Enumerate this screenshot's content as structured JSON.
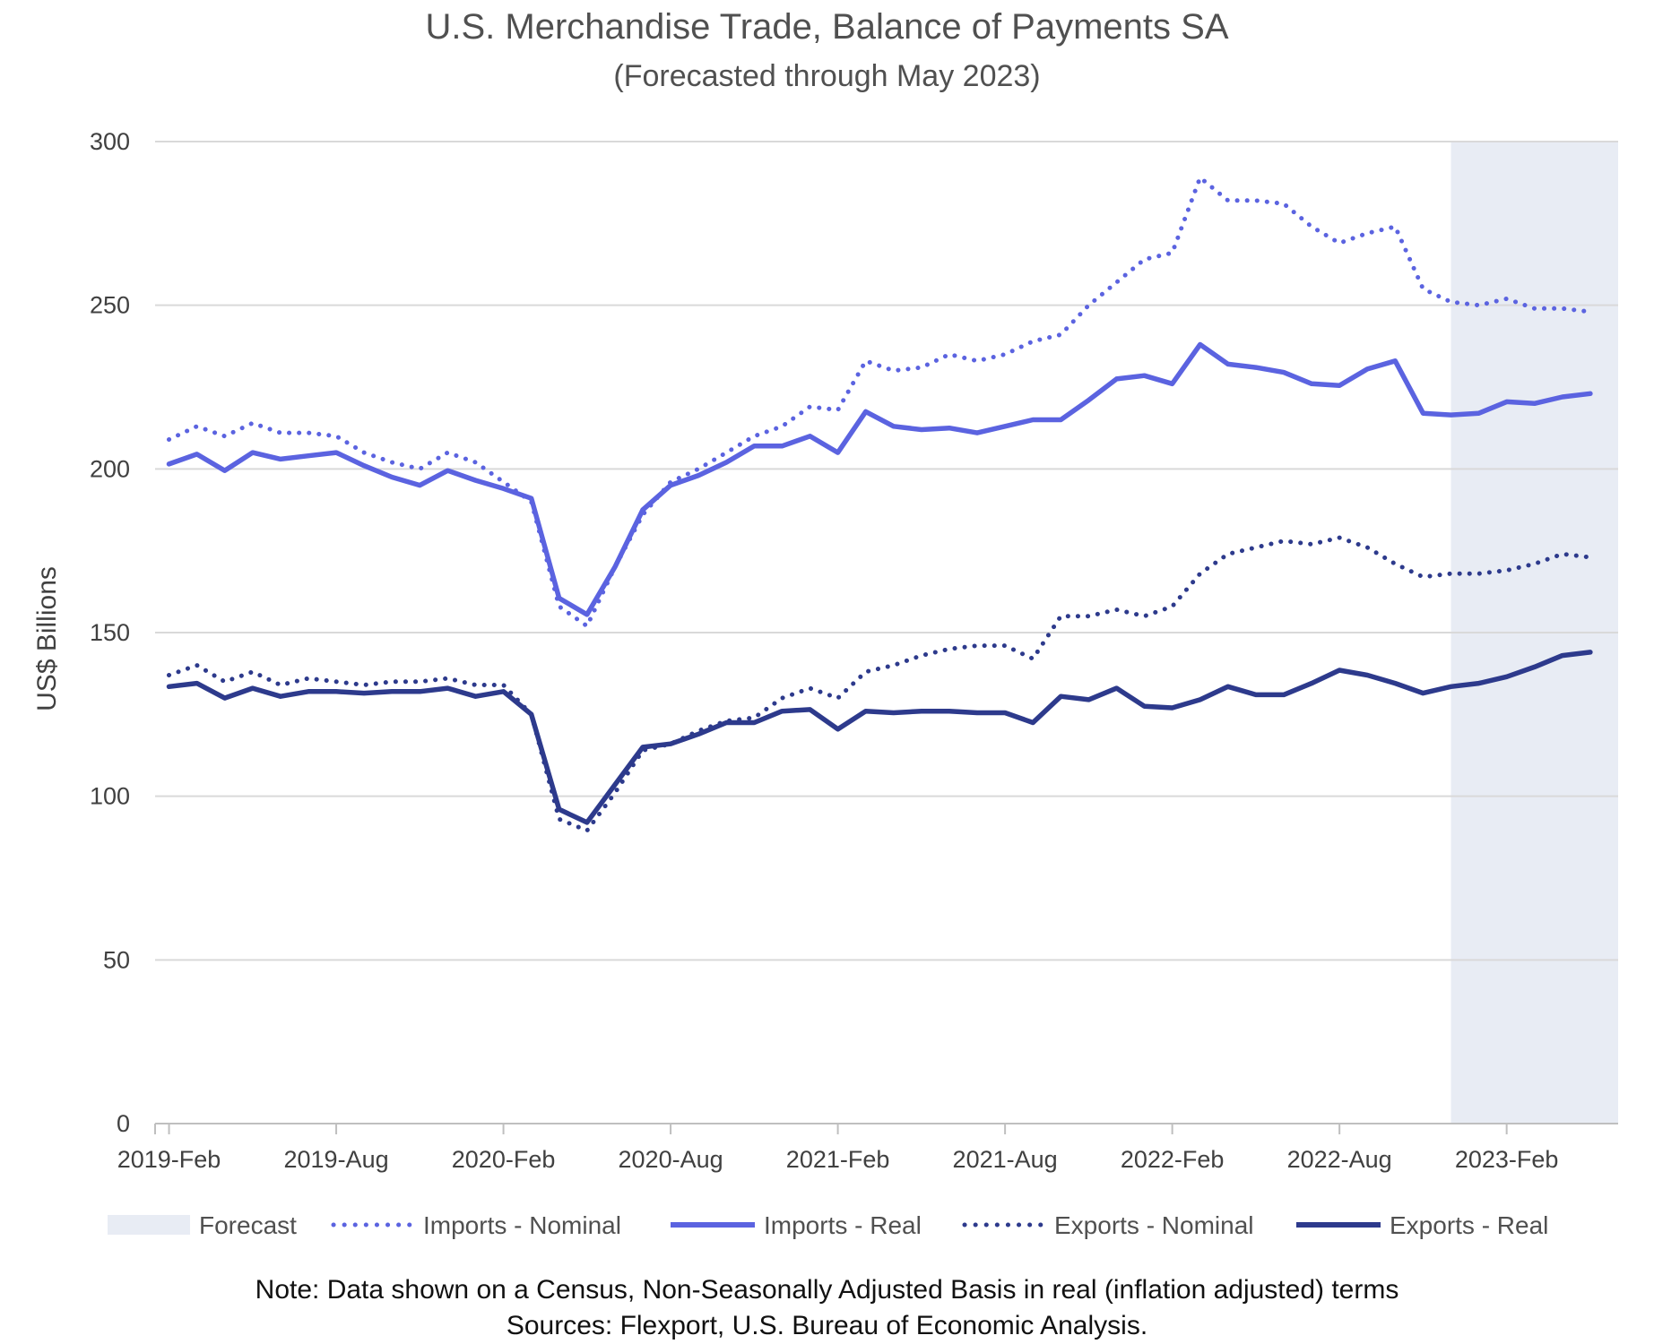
{
  "chart_data": {
    "type": "line",
    "title": "U.S. Merchandise Trade, Balance of Payments SA",
    "subtitle": "(Forecasted through May 2023)",
    "ylabel": "US$ Billions",
    "xlabel": "",
    "ylim": [
      0,
      300
    ],
    "yticks": [
      "0",
      "50",
      "100",
      "150",
      "200",
      "250",
      "300"
    ],
    "xticks": [
      {
        "index": 0,
        "label": "2019-Feb"
      },
      {
        "index": 6,
        "label": "2019-Aug"
      },
      {
        "index": 12,
        "label": "2020-Feb"
      },
      {
        "index": 18,
        "label": "2020-Aug"
      },
      {
        "index": 24,
        "label": "2021-Feb"
      },
      {
        "index": 30,
        "label": "2021-Aug"
      },
      {
        "index": 36,
        "label": "2022-Feb"
      },
      {
        "index": 42,
        "label": "2022-Aug"
      },
      {
        "index": 48,
        "label": "2023-Feb"
      }
    ],
    "x_count": 52,
    "x_range": [
      -0.5,
      52
    ],
    "forecast_range": [
      46,
      52
    ],
    "grid": true,
    "legend_position": "bottom",
    "legend": {
      "forecast": "Forecast",
      "imports_nominal": "Imports - Nominal",
      "imports_real": "Imports - Real",
      "exports_nominal": "Exports - Nominal",
      "exports_real": "Exports - Real"
    },
    "colors": {
      "imports": "#5b63e0",
      "exports": "#2d3a8c",
      "forecast": "#e8ecf4",
      "grid": "#d9d9d9",
      "axis": "#bfbfbf"
    },
    "series": [
      {
        "key": "imports_nominal",
        "name": "Imports - Nominal",
        "style": "dotted",
        "values": [
          209,
          213,
          210,
          214,
          211,
          211,
          210,
          205,
          202,
          200,
          205,
          202,
          196,
          190,
          158,
          152,
          170,
          186,
          196,
          200,
          205,
          210,
          213,
          219,
          218,
          233,
          230,
          231,
          235,
          233,
          235,
          239,
          241,
          250,
          257,
          264,
          266,
          289,
          282,
          282,
          281,
          274,
          269,
          272,
          274,
          255,
          251,
          250,
          252,
          249,
          249,
          248
        ]
      },
      {
        "key": "imports_real",
        "name": "Imports - Real",
        "style": "solid",
        "values": [
          201.5,
          204.5,
          199.5,
          205,
          203,
          204,
          205,
          201,
          197.5,
          195,
          199.5,
          196.5,
          194,
          191,
          160.5,
          155.5,
          170,
          187.5,
          195,
          198,
          202,
          207,
          207,
          210,
          205,
          217.5,
          213,
          212,
          212.5,
          211,
          213,
          215,
          215,
          221,
          227.5,
          228.5,
          226,
          238,
          232,
          231,
          229.5,
          226,
          225.5,
          230.5,
          233,
          217,
          216.5,
          217,
          220.5,
          220,
          222,
          223
        ]
      },
      {
        "key": "exports_nominal",
        "name": "Exports - Nominal",
        "style": "dotted",
        "values": [
          137,
          140,
          135,
          138,
          134,
          136,
          135,
          134,
          135,
          135,
          136,
          134,
          134,
          125,
          93,
          89.5,
          101,
          114,
          116,
          120,
          123,
          124,
          130,
          133,
          130,
          138,
          140,
          143,
          145,
          146,
          146,
          142,
          155,
          155,
          157,
          155,
          158,
          168,
          174,
          176,
          178,
          177,
          179,
          176,
          171,
          167,
          168,
          168,
          169,
          171,
          174,
          173
        ]
      },
      {
        "key": "exports_real",
        "name": "Exports - Real",
        "style": "solid",
        "values": [
          133.5,
          134.5,
          130,
          133,
          130.5,
          132,
          132,
          131.5,
          132,
          132,
          133,
          130.5,
          132,
          125,
          96,
          92,
          103.5,
          115,
          116,
          119,
          122.5,
          122.5,
          126,
          126.5,
          120.5,
          126,
          125.5,
          126,
          126,
          125.5,
          125.5,
          122.5,
          130.5,
          129.5,
          133,
          127.5,
          127,
          129.5,
          133.5,
          131,
          131,
          134.5,
          138.5,
          137,
          134.5,
          131.5,
          133.5,
          134.5,
          136.5,
          139.5,
          143,
          144
        ]
      }
    ]
  },
  "notes": {
    "line1": "Note: Data shown on a Census, Non-Seasonally Adjusted Basis in real (inflation adjusted) terms",
    "line2": "Sources: Flexport, U.S. Bureau of Economic Analysis."
  }
}
